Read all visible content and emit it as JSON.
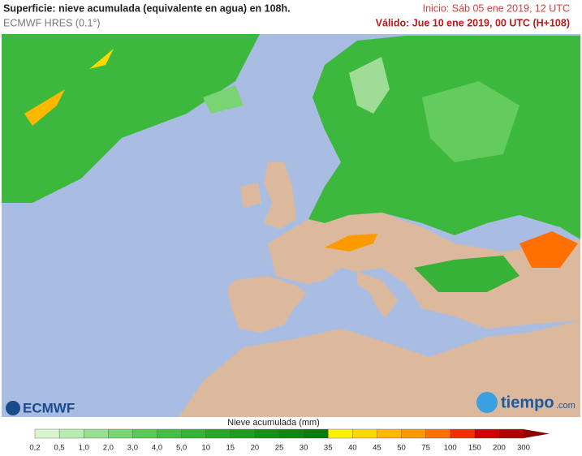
{
  "header": {
    "title": "Superficie: nieve acumulada (equivalente en agua) en 108h.",
    "model": "ECMWF HRES (0.1°)",
    "init": "Inicio: Sáb 05 ene 2019, 12 UTC",
    "valid": "Válido: Jue 10 ene 2019, 00 UTC (H+108)"
  },
  "logos": {
    "left": "ECMWF",
    "right": "tiempo",
    "right_suffix": ".com"
  },
  "legend": {
    "title": "Nieve acumulada (mm)",
    "levels": [
      "0,2",
      "0,5",
      "1,0",
      "2,0",
      "3,0",
      "4,0",
      "5,0",
      "10",
      "15",
      "20",
      "25",
      "30",
      "35",
      "40",
      "45",
      "50",
      "75",
      "100",
      "150",
      "200",
      "300"
    ],
    "colors": [
      "#d8f5d0",
      "#b9ecb0",
      "#98e090",
      "#7ad474",
      "#5cc858",
      "#48bd45",
      "#36b236",
      "#2aa72a",
      "#219c21",
      "#189018",
      "#118511",
      "#0a7a0a",
      "#fff200",
      "#ffd800",
      "#ffb800",
      "#ff9900",
      "#ff7000",
      "#f03000",
      "#d00000",
      "#b00000"
    ],
    "arrow_color": "#8c0000"
  }
}
